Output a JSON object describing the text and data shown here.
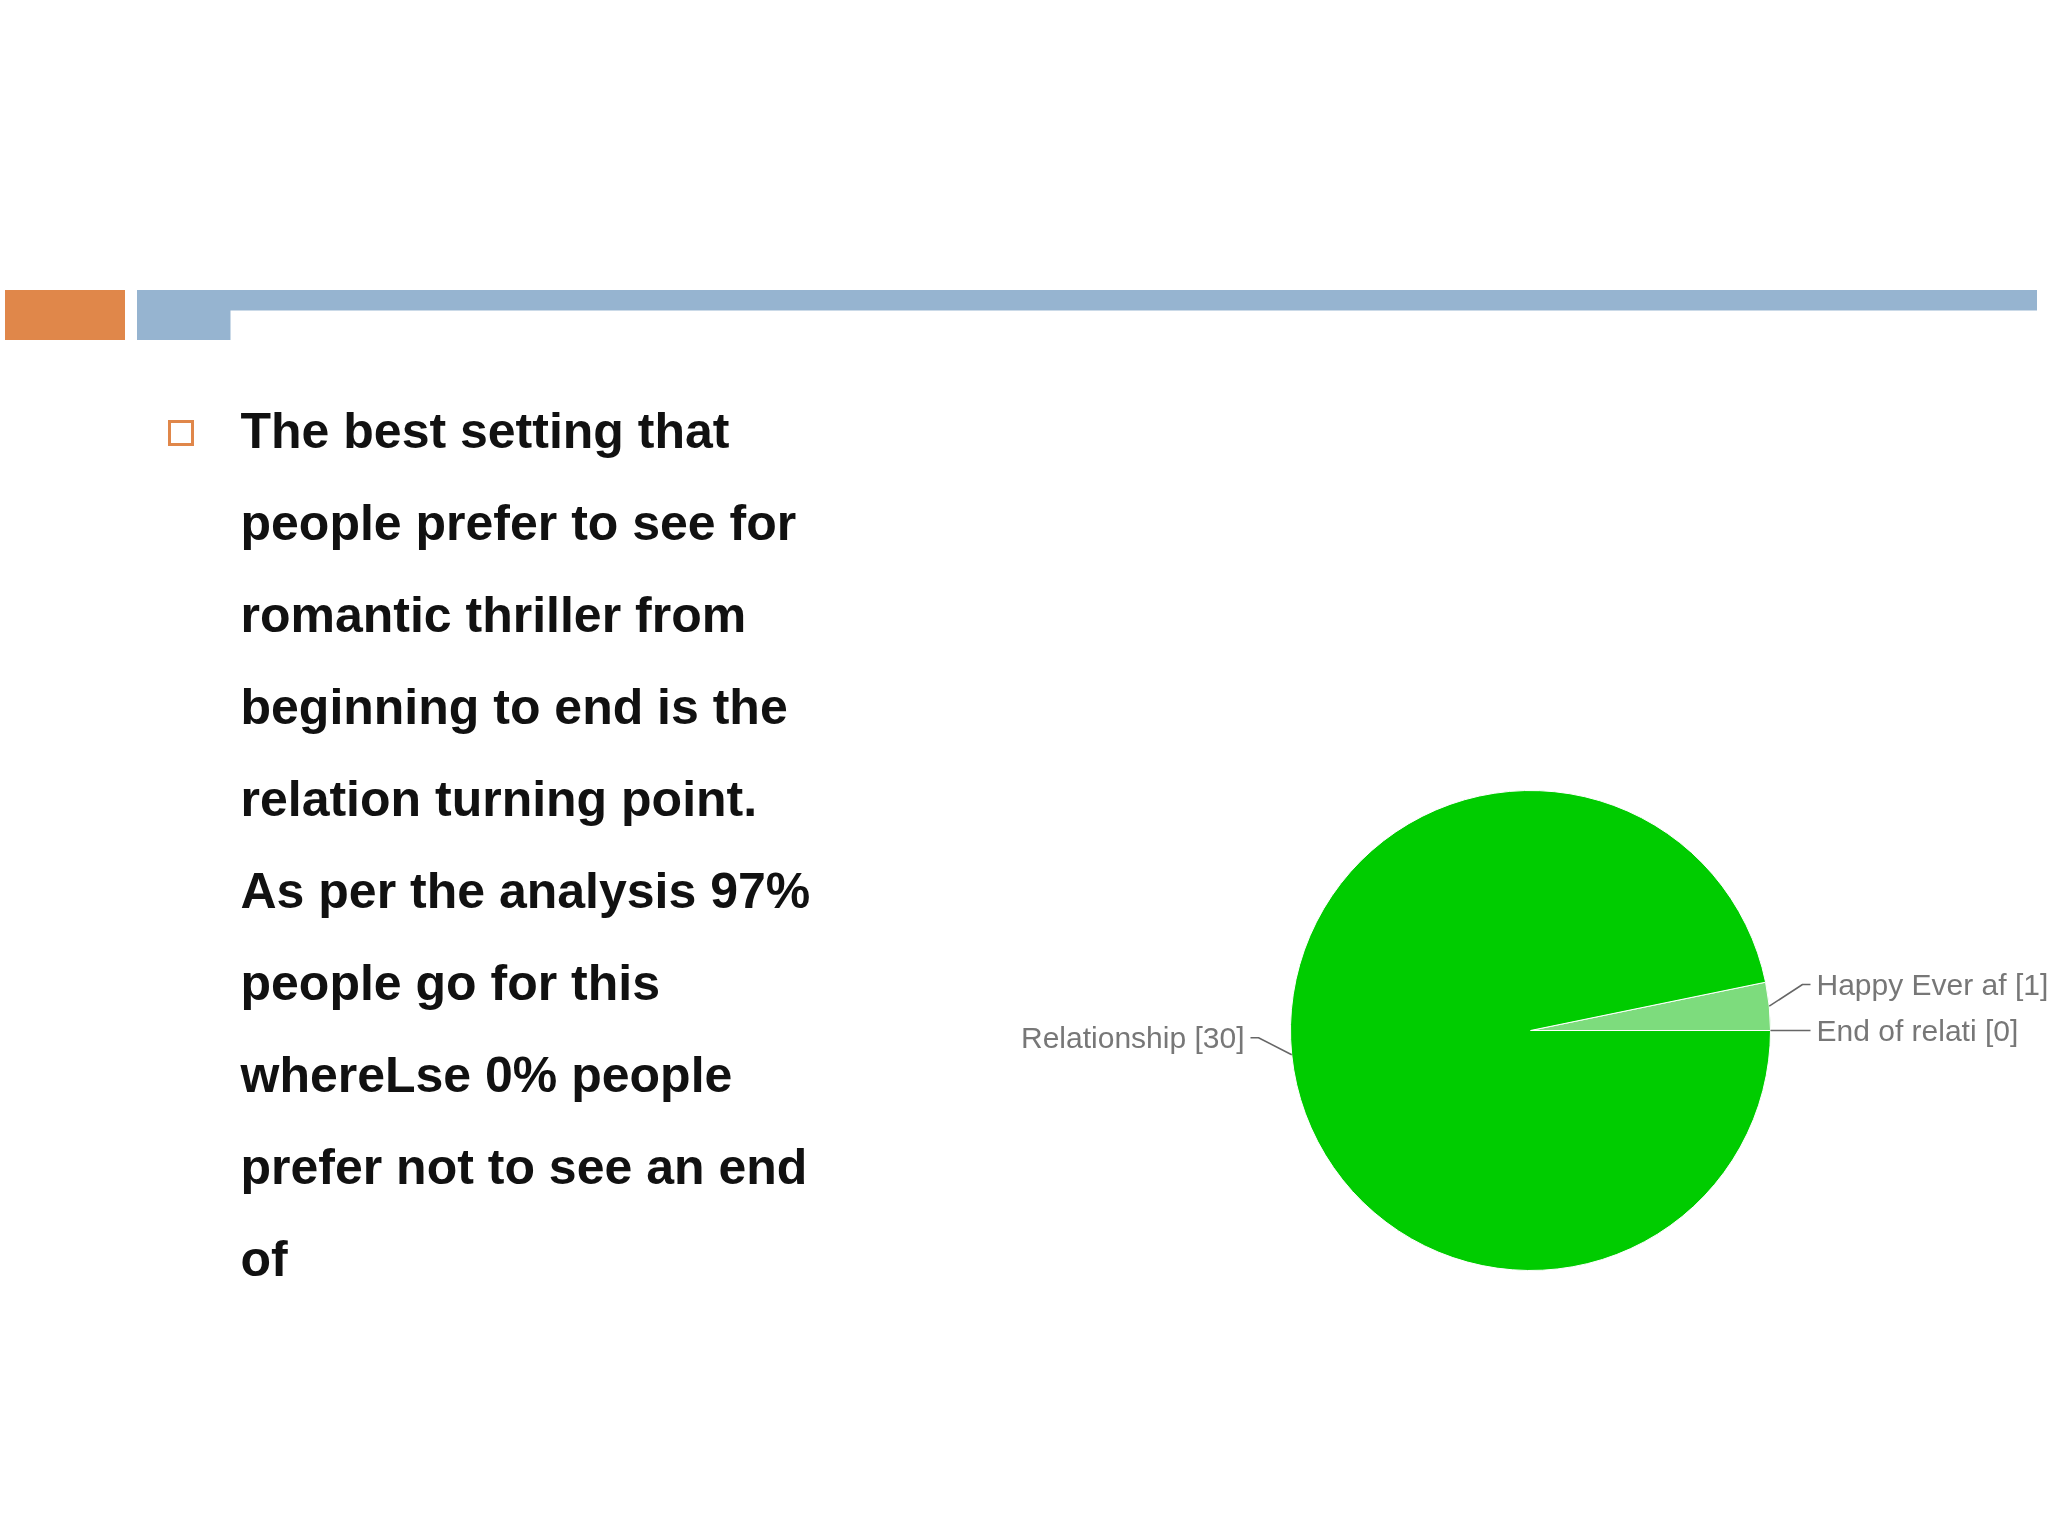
{
  "chart_data": {
    "type": "pie",
    "categories": [
      "End of relati",
      "Happy Ever af",
      "Relationship"
    ],
    "values": [
      0,
      1,
      30
    ],
    "value_labels": [
      "[0]",
      "[1]",
      "[30]"
    ],
    "colors": [
      "#a8eaa8",
      "#7ddc7d",
      "#00cc00"
    ],
    "annotations": [
      "The best setting that people prefer to see for romantic thriller from beginning to end is the relation turning point. As per the analysis 97% people go for this whereLse 0% people prefer not to see an end of"
    ]
  }
}
